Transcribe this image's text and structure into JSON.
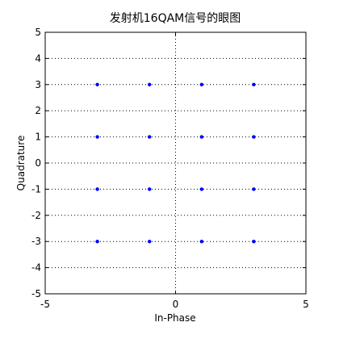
{
  "chart_data": {
    "type": "scatter",
    "title": "发射机16QAM信号的眼图",
    "xlabel": "In-Phase",
    "ylabel": "Quadrature",
    "xlim": [
      -5,
      5
    ],
    "ylim": [
      -5,
      5
    ],
    "xticks": [
      -5,
      0,
      5
    ],
    "yticks": [
      -5,
      -4,
      -3,
      -2,
      -1,
      0,
      1,
      2,
      3,
      4,
      5
    ],
    "grid": true,
    "marker_color": "#0000ff",
    "points": [
      {
        "x": -3,
        "y": 3
      },
      {
        "x": -1,
        "y": 3
      },
      {
        "x": 1,
        "y": 3
      },
      {
        "x": 3,
        "y": 3
      },
      {
        "x": -3,
        "y": 1
      },
      {
        "x": -1,
        "y": 1
      },
      {
        "x": 1,
        "y": 1
      },
      {
        "x": 3,
        "y": 1
      },
      {
        "x": -3,
        "y": -1
      },
      {
        "x": -1,
        "y": -1
      },
      {
        "x": 1,
        "y": -1
      },
      {
        "x": 3,
        "y": -1
      },
      {
        "x": -3,
        "y": -3
      },
      {
        "x": -1,
        "y": -3
      },
      {
        "x": 1,
        "y": -3
      },
      {
        "x": 3,
        "y": -3
      }
    ]
  }
}
